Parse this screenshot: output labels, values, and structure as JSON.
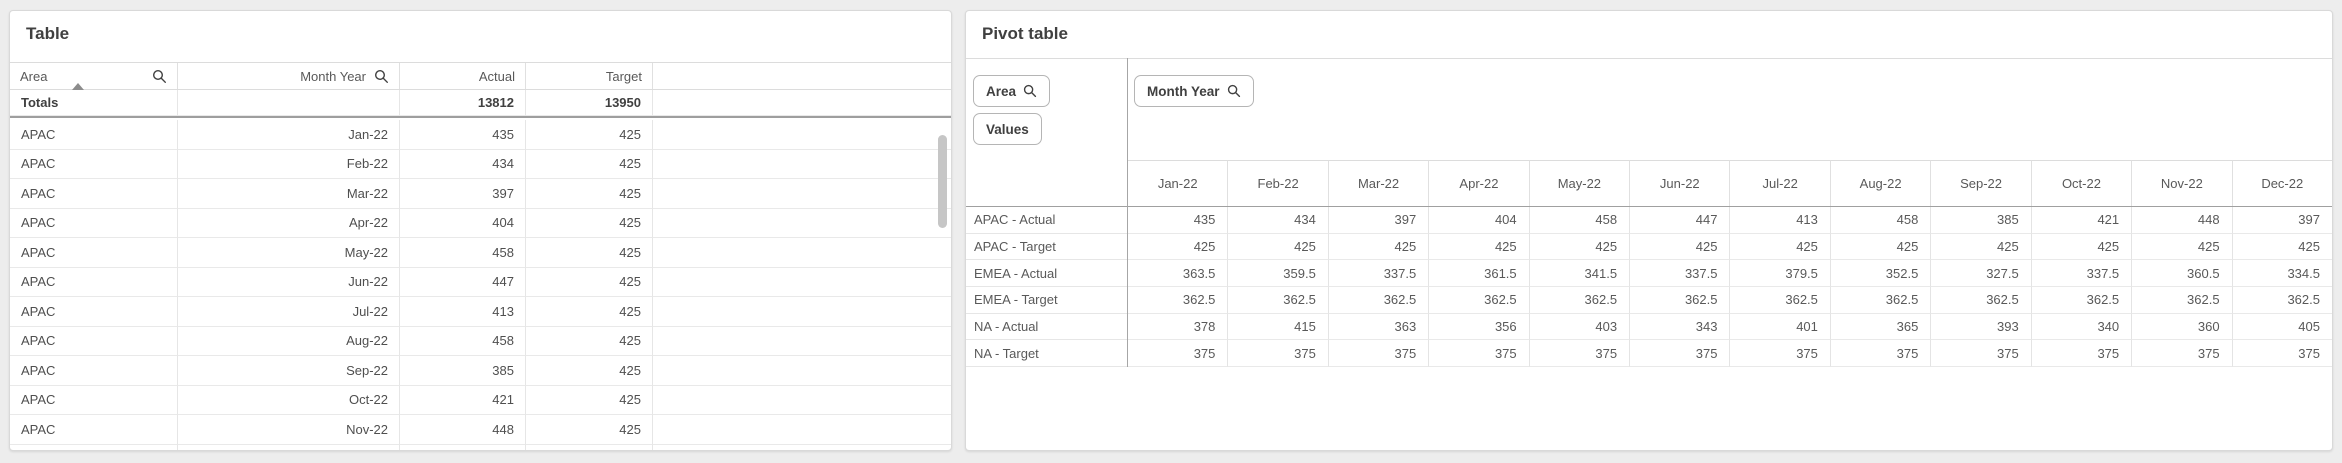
{
  "page": {
    "background_color": "#ededed",
    "panel_color": "#ffffff",
    "accent_text_color": "#404040",
    "text_color": "#595959"
  },
  "icons": {
    "search": "magnifier-glyph",
    "sort_ascending": "up-triangle"
  },
  "left_table": {
    "title": "Table",
    "columns": [
      {
        "label": "Area",
        "align": "left",
        "has_search": true,
        "sorted": "ascending"
      },
      {
        "label": "Month Year",
        "align": "right",
        "has_search": true
      },
      {
        "label": "Actual",
        "align": "right"
      },
      {
        "label": "Target",
        "align": "right"
      }
    ],
    "totals": {
      "label": "Totals",
      "month": "",
      "actual": "13812",
      "target": "13950"
    },
    "rows": [
      {
        "area": "APAC",
        "month": "Jan-22",
        "actual": "435",
        "target": "425"
      },
      {
        "area": "APAC",
        "month": "Feb-22",
        "actual": "434",
        "target": "425"
      },
      {
        "area": "APAC",
        "month": "Mar-22",
        "actual": "397",
        "target": "425"
      },
      {
        "area": "APAC",
        "month": "Apr-22",
        "actual": "404",
        "target": "425"
      },
      {
        "area": "APAC",
        "month": "May-22",
        "actual": "458",
        "target": "425"
      },
      {
        "area": "APAC",
        "month": "Jun-22",
        "actual": "447",
        "target": "425"
      },
      {
        "area": "APAC",
        "month": "Jul-22",
        "actual": "413",
        "target": "425"
      },
      {
        "area": "APAC",
        "month": "Aug-22",
        "actual": "458",
        "target": "425"
      },
      {
        "area": "APAC",
        "month": "Sep-22",
        "actual": "385",
        "target": "425"
      },
      {
        "area": "APAC",
        "month": "Oct-22",
        "actual": "421",
        "target": "425"
      },
      {
        "area": "APAC",
        "month": "Nov-22",
        "actual": "448",
        "target": "425"
      }
    ],
    "partial_row_visible": true,
    "scrollbar_visible": true
  },
  "pivot_table": {
    "title": "Pivot table",
    "buttons": {
      "row_dimension": "Area",
      "values": "Values",
      "column_dimension": "Month Year"
    },
    "columns": [
      "Jan-22",
      "Feb-22",
      "Mar-22",
      "Apr-22",
      "May-22",
      "Jun-22",
      "Jul-22",
      "Aug-22",
      "Sep-22",
      "Oct-22",
      "Nov-22",
      "Dec-22"
    ],
    "rows": [
      {
        "label": "APAC - Actual",
        "values": [
          "435",
          "434",
          "397",
          "404",
          "458",
          "447",
          "413",
          "458",
          "385",
          "421",
          "448",
          "397"
        ]
      },
      {
        "label": "APAC - Target",
        "values": [
          "425",
          "425",
          "425",
          "425",
          "425",
          "425",
          "425",
          "425",
          "425",
          "425",
          "425",
          "425"
        ]
      },
      {
        "label": "EMEA - Actual",
        "values": [
          "363.5",
          "359.5",
          "337.5",
          "361.5",
          "341.5",
          "337.5",
          "379.5",
          "352.5",
          "327.5",
          "337.5",
          "360.5",
          "334.5"
        ]
      },
      {
        "label": "EMEA - Target",
        "values": [
          "362.5",
          "362.5",
          "362.5",
          "362.5",
          "362.5",
          "362.5",
          "362.5",
          "362.5",
          "362.5",
          "362.5",
          "362.5",
          "362.5"
        ]
      },
      {
        "label": "NA - Actual",
        "values": [
          "378",
          "415",
          "363",
          "356",
          "403",
          "343",
          "401",
          "365",
          "393",
          "340",
          "360",
          "405"
        ]
      },
      {
        "label": "NA - Target",
        "values": [
          "375",
          "375",
          "375",
          "375",
          "375",
          "375",
          "375",
          "375",
          "375",
          "375",
          "375",
          "375"
        ]
      }
    ]
  }
}
